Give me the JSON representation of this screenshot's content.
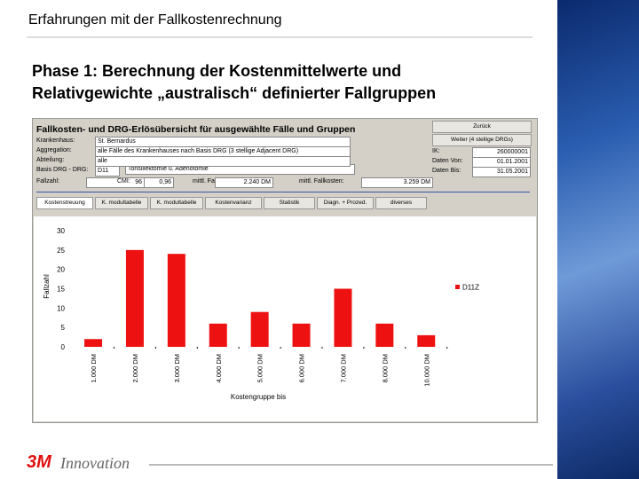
{
  "slide": {
    "title": "Erfahrungen mit der Fallkostenrechnung",
    "heading": [
      "Phase 1: Berechnung der Kostenmittelwerte und",
      "Relativgewichte „australisch“ definierter Fallgruppen"
    ],
    "footer_logo": "3M",
    "footer_text": "Innovation"
  },
  "panel": {
    "title": "Fallkosten- und DRG-Erlösübersicht für ausgewählte Fälle und Gruppen",
    "back_button": "Zurück",
    "next_button": "Weiter (4 stellige DRGs)",
    "fields": [
      {
        "label": "Krankenhaus:",
        "value": "St. Bernardus"
      },
      {
        "label": "Aggregation:",
        "value": "alle Fälle des Krankenhauses nach Basis DRG (3 stellige Adjacent DRG)"
      },
      {
        "label": "Abteilung:",
        "value": "alle"
      },
      {
        "label": "Basis DRG - DRG:",
        "value": "D11"
      }
    ],
    "drg_name": "Tonsillektomie u. Adenotomie",
    "stats": [
      {
        "label": "Fallzahl:",
        "value": "96"
      },
      {
        "label": "CMI:",
        "value": "0,96"
      },
      {
        "label": "mittl. Fallerlös:",
        "value": "2.240 DM"
      },
      {
        "label": "mittl. Fallkosten:",
        "value": "3.259 DM"
      }
    ],
    "right_fields": [
      {
        "label": "IK:",
        "value": "260000001"
      },
      {
        "label": "Daten Von:",
        "value": "01.01.2001"
      },
      {
        "label": "Daten Bis:",
        "value": "31.05.2001"
      }
    ],
    "tabs": [
      "Kostenstreuung",
      "K. modultabelle",
      "K. modultabelle",
      "Kostenvarianz",
      "Statistik",
      "Diagn. + Prozed.",
      "diverses"
    ]
  },
  "chart_data": {
    "type": "bar",
    "y_label": "Fallzahl",
    "x_label": "Kostengruppe bis",
    "categories": [
      "1.000 DM",
      "2.000 DM",
      "3.000 DM",
      "4.000 DM",
      "5.000 DM",
      "6.000 DM",
      "7.000 DM",
      "8.000 DM",
      "10.000 DM"
    ],
    "series": [
      {
        "name": "D11Z",
        "color": "#ee1111",
        "values": [
          2,
          25,
          24,
          6,
          9,
          6,
          15,
          6,
          3
        ]
      }
    ],
    "ylim": [
      0,
      30
    ],
    "yticks": [
      0,
      5,
      10,
      15,
      20,
      25,
      30
    ],
    "grid": false,
    "legend": "right"
  }
}
